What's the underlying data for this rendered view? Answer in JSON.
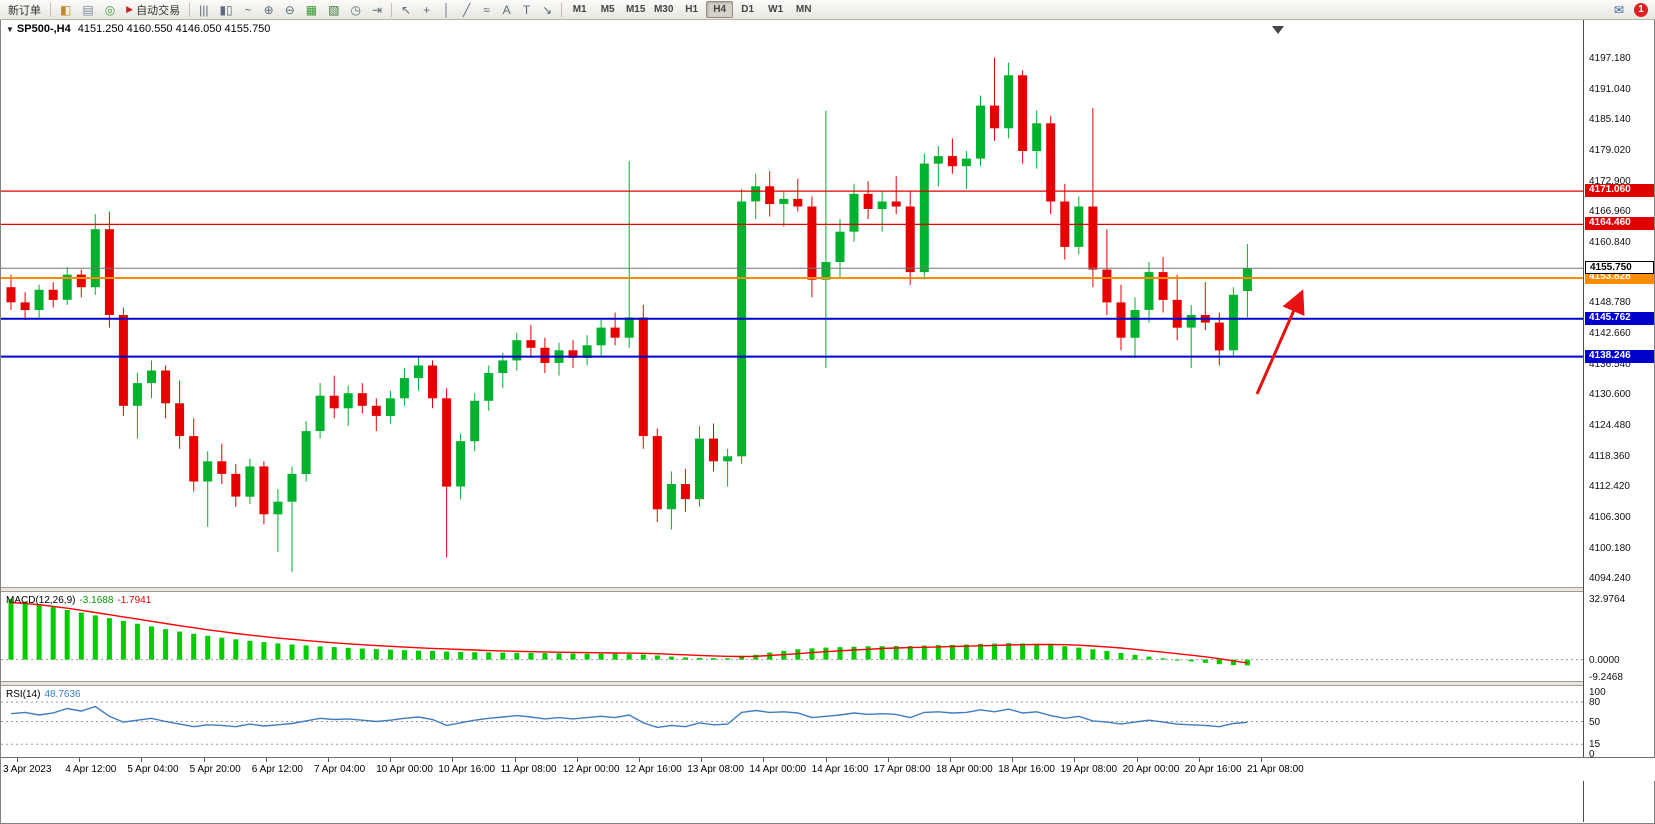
{
  "toolbar": {
    "new_order_label": "新订单",
    "autotrading_label": "自动交易",
    "icons_left": [
      {
        "name": "market-watch-icon",
        "glyph": "◧",
        "color": "#c08a2a"
      },
      {
        "name": "profiles-icon",
        "glyph": "▤",
        "color": "#7a8aa8"
      },
      {
        "name": "navigator-icon",
        "glyph": "◎",
        "color": "#3a9a3a"
      }
    ],
    "chart_icons": [
      {
        "name": "bars-chart-icon",
        "glyph": "|||"
      },
      {
        "name": "candlestick-chart-icon",
        "glyph": "▮▯"
      },
      {
        "name": "line-chart-icon",
        "glyph": "~"
      },
      {
        "name": "zoom-in-icon",
        "glyph": "⊕"
      },
      {
        "name": "zoom-out-icon",
        "glyph": "⊖"
      },
      {
        "name": "tile-windows-icon",
        "glyph": "▦",
        "color": "#2f9a2f"
      },
      {
        "name": "new-chart-icon",
        "glyph": "▧",
        "color": "#3a7a3a"
      },
      {
        "name": "period-icon",
        "glyph": "◷"
      },
      {
        "name": "chart-shift-icon",
        "glyph": "⇥"
      }
    ],
    "tool_icons": [
      {
        "name": "cursor-icon",
        "glyph": "↖"
      },
      {
        "name": "crosshair-icon",
        "glyph": "+"
      },
      {
        "name": "vertical-line-icon",
        "glyph": "│"
      },
      {
        "name": "trendline-icon",
        "glyph": "╱"
      },
      {
        "name": "fibonacci-icon",
        "glyph": "≈"
      },
      {
        "name": "text-icon",
        "glyph": "A"
      },
      {
        "name": "label-icon",
        "glyph": "T"
      },
      {
        "name": "arrows-icon",
        "glyph": "↘"
      }
    ],
    "timeframes": [
      "M1",
      "M5",
      "M15",
      "M30",
      "H1",
      "H4",
      "D1",
      "W1",
      "MN"
    ],
    "active_timeframe": "H4",
    "notification_count": "1"
  },
  "chart": {
    "collapse_icon": "▼",
    "symbol_period": "SP500-,H4",
    "ohlc_text": "4151.250 4160.550 4146.050 4155.750"
  },
  "macd_label": {
    "name": "MACD(12,26,9)",
    "main_value": "-3.1688",
    "signal_value": "-1.7941"
  },
  "rsi_label": {
    "name": "RSI(14)",
    "value": "48.7636"
  },
  "colors": {
    "up": "#00b22d",
    "down": "#e60000",
    "macd_hist": "#00cc00",
    "macd_signal": "#ff0000",
    "rsi_line": "#3f7cc1",
    "resistance": "#e00000",
    "support": "#0000cd",
    "pivot": "#ff8c00",
    "arrow": "#e81212"
  },
  "chart_data": {
    "type": "candlestick",
    "symbol": "SP500-",
    "timeframe": "H4",
    "title": "SP500-,H4",
    "current_bar": {
      "open": 4151.25,
      "high": 4160.55,
      "low": 4146.05,
      "close": 4155.75
    },
    "current_price": {
      "price": 4155.75,
      "label": "4155.750"
    },
    "y_range": [
      4092,
      4201
    ],
    "price_axis_ticks": [
      "4197.180",
      "4191.040",
      "4185.140",
      "4179.020",
      "4172.900",
      "4166.960",
      "4160.840",
      "4148.780",
      "4142.660",
      "4136.540",
      "4130.600",
      "4124.480",
      "4118.360",
      "4112.420",
      "4106.300",
      "4100.180",
      "4094.240"
    ],
    "x_labels": [
      "3 Apr 2023",
      "4 Apr 12:00",
      "5 Apr 04:00",
      "5 Apr 20:00",
      "6 Apr 12:00",
      "7 Apr 04:00",
      "10 Apr 00:00",
      "10 Apr 16:00",
      "11 Apr 08:00",
      "12 Apr 00:00",
      "12 Apr 16:00",
      "13 Apr 08:00",
      "14 Apr 00:00",
      "14 Apr 16:00",
      "17 Apr 08:00",
      "18 Apr 00:00",
      "18 Apr 16:00",
      "19 Apr 08:00",
      "20 Apr 00:00",
      "20 Apr 16:00",
      "21 Apr 08:00"
    ],
    "levels": [
      {
        "price": 4171.06,
        "label": "4171.060",
        "color": "#e00000",
        "width": 1.2
      },
      {
        "price": 4164.46,
        "label": "4164.460",
        "color": "#e00000",
        "width": 1.2
      },
      {
        "price": 4153.828,
        "label": "4153.828",
        "color": "#ff8c00",
        "width": 2
      },
      {
        "price": 4145.762,
        "label": "4145.762",
        "color": "#0000cd",
        "width": 2
      },
      {
        "price": 4138.246,
        "label": "4138.246",
        "color": "#0000cd",
        "width": 2
      }
    ],
    "candles_ohlc": [
      [
        4152,
        4154.5,
        4147.5,
        4149
      ],
      [
        4149,
        4151,
        4145.5,
        4147.5
      ],
      [
        4147.5,
        4152.5,
        4146,
        4151.5
      ],
      [
        4151.5,
        4153,
        4148,
        4149.5
      ],
      [
        4149.5,
        4156,
        4148.5,
        4154.5
      ],
      [
        4154.5,
        4155.5,
        4150,
        4152
      ],
      [
        4152,
        4166.5,
        4150.5,
        4163.5
      ],
      [
        4163.5,
        4167,
        4144,
        4146.5
      ],
      [
        4146.5,
        4148,
        4126.5,
        4128.5
      ],
      [
        4128.5,
        4135,
        4122,
        4133
      ],
      [
        4133,
        4137.5,
        4130,
        4135.5
      ],
      [
        4135.5,
        4136.5,
        4126,
        4129
      ],
      [
        4129,
        4133.5,
        4120,
        4122.5
      ],
      [
        4122.5,
        4126,
        4111.5,
        4113.5
      ],
      [
        4113.5,
        4119.5,
        4104.5,
        4117.5
      ],
      [
        4117.5,
        4121,
        4113,
        4115
      ],
      [
        4115,
        4117,
        4108.5,
        4110.5
      ],
      [
        4110.5,
        4118,
        4109,
        4116.5
      ],
      [
        4116.5,
        4117.5,
        4105,
        4107
      ],
      [
        4107,
        4112,
        4099.5,
        4109.5
      ],
      [
        4109.5,
        4116.5,
        4095.5,
        4115
      ],
      [
        4115,
        4125.5,
        4113.5,
        4123.5
      ],
      [
        4123.5,
        4133,
        4122,
        4130.5
      ],
      [
        4130.5,
        4134.5,
        4126,
        4128
      ],
      [
        4128,
        4132.5,
        4124.5,
        4131
      ],
      [
        4131,
        4133,
        4127,
        4128.5
      ],
      [
        4128.5,
        4130,
        4123.5,
        4126.5
      ],
      [
        4126.5,
        4131.5,
        4125,
        4130
      ],
      [
        4130,
        4136,
        4128.5,
        4134
      ],
      [
        4134,
        4138.5,
        4131.5,
        4136.5
      ],
      [
        4136.5,
        4137.5,
        4128,
        4130
      ],
      [
        4130,
        4132,
        4098.5,
        4112.5
      ],
      [
        4112.5,
        4123,
        4110,
        4121.5
      ],
      [
        4121.5,
        4131,
        4119.5,
        4129.5
      ],
      [
        4129.5,
        4136.5,
        4127.5,
        4135
      ],
      [
        4135,
        4139,
        4132,
        4137.5
      ],
      [
        4137.5,
        4143,
        4135.5,
        4141.5
      ],
      [
        4141.5,
        4144.5,
        4138,
        4140
      ],
      [
        4140,
        4142,
        4135,
        4137
      ],
      [
        4137,
        4141,
        4134.5,
        4139.5
      ],
      [
        4139.5,
        4141.5,
        4136,
        4138
      ],
      [
        4138,
        4142.5,
        4136.5,
        4140.5
      ],
      [
        4140.5,
        4145.5,
        4138.5,
        4144
      ],
      [
        4144,
        4147,
        4140.5,
        4142
      ],
      [
        4142,
        4177,
        4140,
        4146
      ],
      [
        4146,
        4148.5,
        4120,
        4122.5
      ],
      [
        4122.5,
        4124,
        4105.5,
        4108
      ],
      [
        4108,
        4115.5,
        4104,
        4113
      ],
      [
        4113,
        4116,
        4107.5,
        4110
      ],
      [
        4110,
        4124.5,
        4108.5,
        4122
      ],
      [
        4122,
        4125,
        4115.5,
        4117.5
      ],
      [
        4117.5,
        4120,
        4112.5,
        4118.5
      ],
      [
        4118.5,
        4171.5,
        4117,
        4169
      ],
      [
        4169,
        4174.5,
        4165.5,
        4172
      ],
      [
        4172,
        4175,
        4166,
        4168.5
      ],
      [
        4168.5,
        4171,
        4164,
        4169.5
      ],
      [
        4169.5,
        4173.5,
        4167,
        4168
      ],
      [
        4168,
        4170,
        4150,
        4153.5
      ],
      [
        4153.5,
        4187,
        4136,
        4157
      ],
      [
        4157,
        4165.5,
        4154,
        4163
      ],
      [
        4163,
        4172.5,
        4161,
        4170.5
      ],
      [
        4170.5,
        4173,
        4165.5,
        4167.5
      ],
      [
        4167.5,
        4171,
        4163,
        4169
      ],
      [
        4169,
        4174,
        4166.5,
        4168
      ],
      [
        4168,
        4171,
        4152.5,
        4155
      ],
      [
        4155,
        4178.5,
        4153.5,
        4176.5
      ],
      [
        4176.5,
        4180,
        4172,
        4178
      ],
      [
        4178,
        4181.5,
        4174.5,
        4176
      ],
      [
        4176,
        4179,
        4171.5,
        4177.5
      ],
      [
        4177.5,
        4190,
        4176,
        4188
      ],
      [
        4188,
        4197.5,
        4181,
        4183.5
      ],
      [
        4183.5,
        4196.5,
        4181.5,
        4194
      ],
      [
        4194,
        4195,
        4176.5,
        4179
      ],
      [
        4179,
        4187,
        4175.5,
        4184.5
      ],
      [
        4184.5,
        4186,
        4166.5,
        4169
      ],
      [
        4169,
        4172.5,
        4157.5,
        4160
      ],
      [
        4160,
        4170,
        4158.5,
        4168
      ],
      [
        4168,
        4187.5,
        4152,
        4155.5
      ],
      [
        4155.5,
        4163.5,
        4146.5,
        4149
      ],
      [
        4149,
        4152.5,
        4139.5,
        4142
      ],
      [
        4142,
        4150,
        4138,
        4147.5
      ],
      [
        4147.5,
        4157,
        4145,
        4155
      ],
      [
        4155,
        4158,
        4147,
        4149.5
      ],
      [
        4149.5,
        4154.5,
        4141.5,
        4144
      ],
      [
        4144,
        4148.5,
        4136,
        4146.5
      ],
      [
        4146.5,
        4153,
        4143.5,
        4145
      ],
      [
        4145,
        4147,
        4136.5,
        4139.5
      ],
      [
        4139.5,
        4152,
        4138.5,
        4150.5
      ],
      [
        4151.25,
        4160.55,
        4146.05,
        4155.75
      ]
    ],
    "indicators": [
      {
        "name": "MACD",
        "params": "12,26,9",
        "current_main": -3.1688,
        "current_signal": -1.7941,
        "range": [
          -10,
          34
        ],
        "scale_labels": [
          {
            "v": 32.9764,
            "t": "32.9764"
          },
          {
            "v": 0,
            "t": "0.0000"
          },
          {
            "v": -9.2468,
            "t": "-9.2468"
          }
        ],
        "histogram": [
          33.0,
          31.5,
          30.0,
          28.5,
          27.0,
          25.5,
          24.0,
          22.5,
          21.0,
          19.5,
          18.0,
          16.5,
          15.2,
          14.0,
          12.9,
          11.9,
          11.0,
          10.2,
          9.5,
          8.8,
          8.2,
          7.7,
          7.2,
          6.8,
          6.4,
          6.0,
          5.7,
          5.4,
          5.1,
          4.9,
          4.7,
          4.4,
          4.2,
          4.0,
          3.9,
          3.8,
          3.7,
          3.6,
          3.5,
          3.4,
          3.3,
          3.2,
          3.2,
          3.1,
          3.0,
          2.7,
          2.2,
          1.6,
          1.2,
          0.9,
          0.8,
          0.7,
          1.4,
          2.6,
          3.8,
          4.8,
          5.6,
          6.1,
          6.5,
          6.8,
          7.0,
          7.2,
          7.3,
          7.4,
          7.4,
          7.6,
          7.8,
          8.0,
          8.2,
          8.5,
          8.7,
          8.9,
          8.8,
          8.5,
          8.0,
          7.3,
          6.5,
          5.6,
          4.6,
          3.6,
          2.6,
          1.6,
          0.7,
          -0.2,
          -1.0,
          -1.8,
          -2.5,
          -3.0,
          -3.1688
        ],
        "signal": [
          31.0,
          30.5,
          29.8,
          28.9,
          27.9,
          26.8,
          25.6,
          24.4,
          23.2,
          22.0,
          20.8,
          19.6,
          18.4,
          17.3,
          16.2,
          15.2,
          14.2,
          13.3,
          12.5,
          11.7,
          11.0,
          10.3,
          9.7,
          9.1,
          8.6,
          8.1,
          7.6,
          7.2,
          6.8,
          6.4,
          6.1,
          5.8,
          5.5,
          5.2,
          4.9,
          4.7,
          4.5,
          4.3,
          4.2,
          4.0,
          3.9,
          3.8,
          3.7,
          3.6,
          3.5,
          3.4,
          3.2,
          2.9,
          2.6,
          2.3,
          2.0,
          1.8,
          1.7,
          1.8,
          2.2,
          2.7,
          3.2,
          3.8,
          4.3,
          4.8,
          5.2,
          5.6,
          6.0,
          6.3,
          6.5,
          6.7,
          6.9,
          7.1,
          7.3,
          7.5,
          7.7,
          7.9,
          8.1,
          8.2,
          8.2,
          8.1,
          7.8,
          7.4,
          6.9,
          6.3,
          5.6,
          4.8,
          4.0,
          3.2,
          2.4,
          1.5,
          0.5,
          -0.7,
          -1.7941
        ]
      },
      {
        "name": "RSI",
        "params": "14",
        "current": 48.7636,
        "range": [
          0,
          100
        ],
        "levels": [
          80,
          50,
          15
        ],
        "scale_labels": [
          {
            "v": 100,
            "t": "100"
          },
          {
            "v": 80,
            "t": "80"
          },
          {
            "v": 50,
            "t": "50"
          },
          {
            "v": 15,
            "t": "15"
          },
          {
            "v": 0,
            "t": "0"
          }
        ],
        "values": [
          62,
          64,
          60,
          63,
          70,
          66,
          73,
          58,
          49,
          52,
          55,
          50,
          46,
          42,
          45,
          44,
          42,
          46,
          43,
          45,
          47,
          51,
          55,
          53,
          54,
          52,
          50,
          52,
          55,
          57,
          53,
          44,
          48,
          52,
          55,
          57,
          59,
          57,
          54,
          56,
          54,
          56,
          58,
          56,
          60,
          48,
          41,
          44,
          42,
          48,
          45,
          46,
          64,
          67,
          64,
          65,
          63,
          56,
          58,
          60,
          63,
          61,
          62,
          61,
          56,
          64,
          65,
          63,
          64,
          68,
          65,
          69,
          63,
          65,
          59,
          55,
          58,
          51,
          49,
          46,
          49,
          52,
          49,
          46,
          45,
          44,
          42,
          47,
          48.7636
        ]
      }
    ],
    "annotations": [
      {
        "type": "arrow",
        "color": "#e81212",
        "direction": "up-right",
        "note": "red arrow pointing at price bounce"
      }
    ]
  }
}
